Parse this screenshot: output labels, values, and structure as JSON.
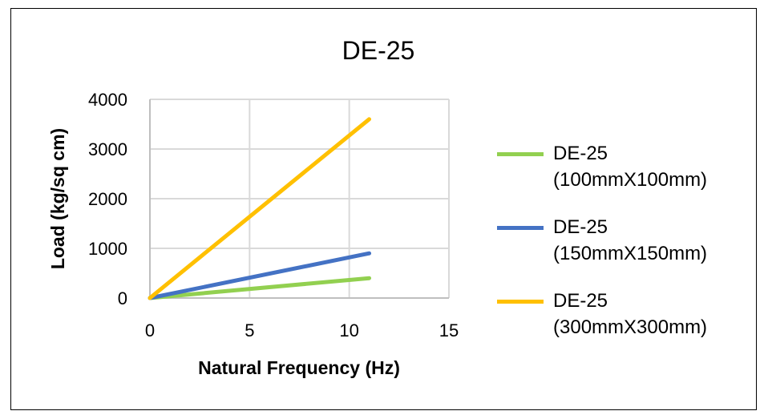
{
  "chart_data": {
    "type": "line",
    "title": "DE-25",
    "xlabel": "Natural Frequency (Hz)",
    "ylabel": "Load (kg/sq cm)",
    "xlim": [
      0,
      15
    ],
    "ylim": [
      0,
      4000
    ],
    "xticks": [
      "0",
      "5",
      "10",
      "15"
    ],
    "yticks": [
      "0",
      "1000",
      "2000",
      "3000",
      "4000"
    ],
    "grid": true,
    "legend": "right",
    "series": [
      {
        "name": "DE-25 (100mmX100mm)",
        "line1": "DE-25",
        "line2": "(100mmX100mm)",
        "color": "#92D050",
        "x": [
          0,
          11
        ],
        "y": [
          0,
          400
        ]
      },
      {
        "name": "DE-25 (150mmX150mm)",
        "line1": "DE-25",
        "line2": "(150mmX150mm)",
        "color": "#4472C4",
        "x": [
          0,
          11
        ],
        "y": [
          0,
          900
        ]
      },
      {
        "name": "DE-25 (300mmX300mm)",
        "line1": "DE-25",
        "line2": "(300mmX300mm)",
        "color": "#FFC000",
        "x": [
          0,
          11
        ],
        "y": [
          0,
          3600
        ]
      }
    ]
  }
}
